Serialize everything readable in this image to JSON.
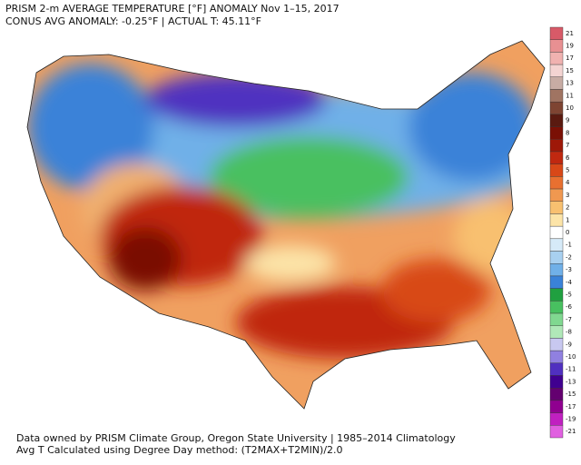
{
  "header": {
    "title": "PRISM 2-m AVERAGE TEMPERATURE [°F] ANOMALY Nov 1–15, 2017",
    "subtitle": "CONUS AVG ANOMALY: -0.25°F | ACTUAL T: 45.11°F"
  },
  "colorbar": {
    "values": [
      21,
      19,
      17,
      15,
      13,
      11,
      10,
      9,
      8,
      7,
      6,
      5,
      4,
      3,
      2,
      1,
      0,
      -1,
      -2,
      -3,
      -4,
      -5,
      -6,
      -7,
      -8,
      -9,
      -10,
      -11,
      -13,
      -15,
      -17,
      -19,
      -21
    ],
    "colors": [
      "#d85a68",
      "#e89092",
      "#f0b2b0",
      "#f4d4d2",
      "#c8aca4",
      "#a07462",
      "#7e4432",
      "#5a1a10",
      "#7a1005",
      "#9e1808",
      "#c02810",
      "#d84818",
      "#e87030",
      "#f09850",
      "#f8c070",
      "#fce4a8",
      "#ffffff",
      "#d6eaf8",
      "#a8d0f0",
      "#70b0e8",
      "#3a82d8",
      "#20a040",
      "#48c060",
      "#80d890",
      "#b0e8b8",
      "#c8c8f0",
      "#9080e0",
      "#5030c0",
      "#400090",
      "#640070",
      "#900090",
      "#c020c0",
      "#e060e0"
    ]
  },
  "footer": {
    "line1": "Data owned by PRISM Climate Group, Oregon State University | 1985–2014 Climatology",
    "line2": "Avg T Calculated using Degree Day method: (T2MAX+T2MIN)/2.0"
  }
}
